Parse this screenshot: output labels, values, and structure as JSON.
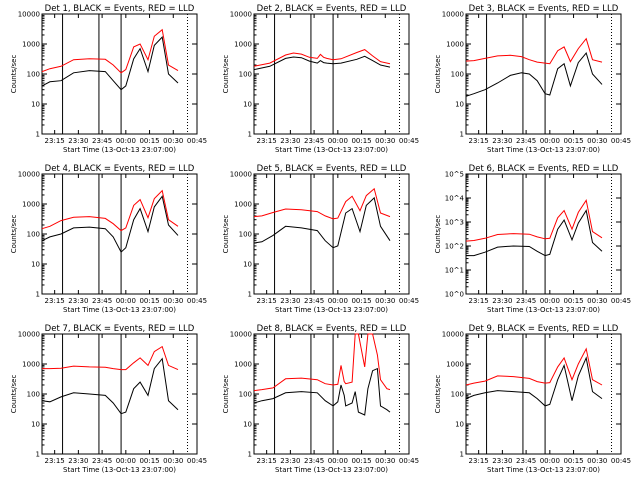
{
  "shared": {
    "xlabel": "Start Time (13-Oct-13 23:07:00)",
    "ylabel": "Counts/sec",
    "x_tick_labels": [
      "23:15",
      "23:30",
      "23:45",
      "00:00",
      "00:15",
      "00:30",
      "00:45"
    ],
    "x_tick_minutes": [
      8,
      23,
      38,
      53,
      68,
      83,
      98
    ],
    "x_range_minutes_after_start": [
      0,
      98
    ],
    "y_scale": "log",
    "vertical_event_lines_minutes": [
      13,
      36,
      50
    ],
    "dotted_line_minute": 92,
    "series_colors": {
      "events": "#000000",
      "lld": "#ff0000"
    }
  },
  "chart_data": [
    {
      "type": "line",
      "title": "Det 1, BLACK = Events, RED = LLD",
      "ylim": [
        1,
        10000
      ],
      "y_tick_labels": [
        "1",
        "10",
        "100",
        "1000",
        "10000"
      ],
      "x": [
        0,
        5,
        12,
        20,
        30,
        40,
        45,
        50,
        53,
        58,
        62,
        67,
        71,
        76,
        80,
        86
      ],
      "series": [
        {
          "name": "Events",
          "values": [
            40,
            55,
            60,
            110,
            130,
            120,
            60,
            30,
            40,
            320,
            700,
            120,
            900,
            1700,
            100,
            50
          ]
        },
        {
          "name": "LLD",
          "values": [
            120,
            150,
            180,
            300,
            320,
            310,
            200,
            110,
            140,
            800,
            1000,
            300,
            1800,
            3000,
            200,
            130
          ]
        }
      ]
    },
    {
      "type": "line",
      "title": "Det 2, BLACK = Events, RED = LLD",
      "ylim": [
        1,
        10000
      ],
      "y_tick_labels": [
        "1",
        "10",
        "100",
        "1000",
        "10000"
      ],
      "x": [
        0,
        10,
        20,
        25,
        30,
        35,
        40,
        42,
        44,
        46,
        50,
        55,
        65,
        70,
        75,
        80,
        86
      ],
      "series": [
        {
          "name": "Events",
          "values": [
            140,
            180,
            330,
            370,
            350,
            270,
            230,
            280,
            240,
            230,
            220,
            230,
            310,
            390,
            280,
            200,
            170
          ]
        },
        {
          "name": "LLD",
          "values": [
            180,
            230,
            430,
            500,
            460,
            360,
            330,
            450,
            360,
            330,
            300,
            320,
            520,
            650,
            400,
            260,
            220
          ]
        }
      ]
    },
    {
      "type": "line",
      "title": "Det 3, BLACK = Events, RED = LLD",
      "ylim": [
        1,
        10000
      ],
      "y_tick_labels": [
        "1",
        "10",
        "100",
        "1000",
        "10000"
      ],
      "x": [
        0,
        5,
        12,
        20,
        28,
        35,
        40,
        45,
        50,
        53,
        58,
        62,
        66,
        71,
        76,
        80,
        86
      ],
      "series": [
        {
          "name": "Events",
          "values": [
            18,
            22,
            30,
            50,
            90,
            110,
            100,
            60,
            22,
            20,
            150,
            220,
            40,
            240,
            500,
            100,
            45
          ]
        },
        {
          "name": "LLD",
          "values": [
            270,
            280,
            330,
            400,
            420,
            380,
            300,
            250,
            230,
            220,
            600,
            800,
            260,
            700,
            1500,
            300,
            250
          ]
        }
      ]
    },
    {
      "type": "line",
      "title": "Det 4, BLACK = Events, RED = LLD",
      "ylim": [
        1,
        10000
      ],
      "y_tick_labels": [
        "1",
        "10",
        "100",
        "1000",
        "10000"
      ],
      "x": [
        0,
        5,
        12,
        20,
        30,
        40,
        45,
        50,
        53,
        58,
        62,
        67,
        71,
        76,
        80,
        86
      ],
      "series": [
        {
          "name": "Events",
          "values": [
            60,
            80,
            100,
            160,
            170,
            150,
            80,
            25,
            35,
            300,
            700,
            120,
            800,
            1800,
            200,
            90
          ]
        },
        {
          "name": "LLD",
          "values": [
            150,
            180,
            280,
            360,
            380,
            330,
            220,
            130,
            160,
            900,
            1400,
            350,
            1500,
            2800,
            300,
            180
          ]
        }
      ]
    },
    {
      "type": "line",
      "title": "Det 5, BLACK = Events, RED = LLD",
      "ylim": [
        1,
        10000
      ],
      "y_tick_labels": [
        "1",
        "10",
        "100",
        "1000",
        "10000"
      ],
      "x": [
        0,
        5,
        12,
        20,
        30,
        40,
        45,
        50,
        53,
        58,
        62,
        67,
        71,
        76,
        80,
        86
      ],
      "series": [
        {
          "name": "Events",
          "values": [
            50,
            55,
            90,
            180,
            160,
            130,
            60,
            35,
            40,
            500,
            700,
            120,
            900,
            1600,
            180,
            60
          ]
        },
        {
          "name": "LLD",
          "values": [
            380,
            400,
            520,
            680,
            640,
            560,
            400,
            320,
            340,
            1200,
            1800,
            600,
            1900,
            3200,
            500,
            380
          ]
        }
      ]
    },
    {
      "type": "line",
      "title": "Det 6, BLACK = Events, RED = LLD",
      "ylim": [
        1,
        100000
      ],
      "y_tick_labels": [
        "10^0",
        "10^1",
        "10^2",
        "10^3",
        "10^4",
        "10^5"
      ],
      "x": [
        0,
        5,
        12,
        20,
        30,
        40,
        45,
        50,
        53,
        58,
        62,
        67,
        71,
        76,
        80,
        86
      ],
      "series": [
        {
          "name": "Events",
          "values": [
            40,
            40,
            55,
            90,
            100,
            95,
            60,
            40,
            45,
            500,
            1200,
            180,
            900,
            3000,
            140,
            60
          ]
        },
        {
          "name": "LLD",
          "values": [
            160,
            170,
            210,
            300,
            330,
            310,
            240,
            200,
            210,
            1500,
            3000,
            500,
            2500,
            8000,
            400,
            220
          ]
        }
      ]
    },
    {
      "type": "line",
      "title": "Det 7, BLACK = Events, RED = LLD",
      "ylim": [
        1,
        10000
      ],
      "y_tick_labels": [
        "1",
        "10",
        "100",
        "1000",
        "10000"
      ],
      "x": [
        0,
        5,
        12,
        20,
        30,
        40,
        45,
        50,
        53,
        58,
        62,
        67,
        71,
        76,
        80,
        86
      ],
      "series": [
        {
          "name": "Events",
          "values": [
            60,
            55,
            80,
            110,
            100,
            90,
            50,
            22,
            25,
            150,
            250,
            90,
            700,
            1500,
            60,
            30
          ]
        },
        {
          "name": "LLD",
          "values": [
            700,
            700,
            720,
            850,
            800,
            780,
            700,
            650,
            650,
            1100,
            1600,
            900,
            2600,
            3800,
            900,
            650
          ]
        }
      ]
    },
    {
      "type": "line",
      "title": "Det 8, BLACK = Events, RED = LLD",
      "ylim": [
        1,
        10000
      ],
      "y_tick_labels": [
        "1",
        "10",
        "100",
        "1000",
        "10000"
      ],
      "x": [
        0,
        5,
        12,
        20,
        30,
        40,
        45,
        50,
        53,
        55,
        57,
        58,
        62,
        64,
        66,
        70,
        72,
        75,
        78,
        80,
        84,
        86
      ],
      "series": [
        {
          "name": "Events",
          "values": [
            50,
            60,
            70,
            110,
            120,
            110,
            60,
            40,
            55,
            200,
            90,
            40,
            50,
            120,
            25,
            20,
            150,
            600,
            700,
            40,
            30,
            25
          ]
        },
        {
          "name": "LLD",
          "values": [
            130,
            140,
            160,
            320,
            340,
            300,
            220,
            200,
            210,
            900,
            260,
            220,
            250,
            10000,
            10000,
            800,
            10000,
            10000,
            2000,
            300,
            150,
            140
          ]
        }
      ]
    },
    {
      "type": "line",
      "title": "Det 9, BLACK = Events, RED = LLD",
      "ylim": [
        1,
        10000
      ],
      "y_tick_labels": [
        "1",
        "10",
        "100",
        "1000",
        "10000"
      ],
      "x": [
        0,
        5,
        12,
        20,
        30,
        40,
        45,
        50,
        53,
        58,
        62,
        67,
        71,
        76,
        80,
        86
      ],
      "series": [
        {
          "name": "Events",
          "values": [
            70,
            90,
            110,
            130,
            120,
            110,
            70,
            40,
            45,
            300,
            900,
            60,
            400,
            1600,
            120,
            70
          ]
        },
        {
          "name": "LLD",
          "values": [
            200,
            230,
            270,
            400,
            380,
            330,
            260,
            230,
            240,
            800,
            1600,
            300,
            1000,
            3200,
            300,
            200
          ]
        }
      ]
    }
  ]
}
